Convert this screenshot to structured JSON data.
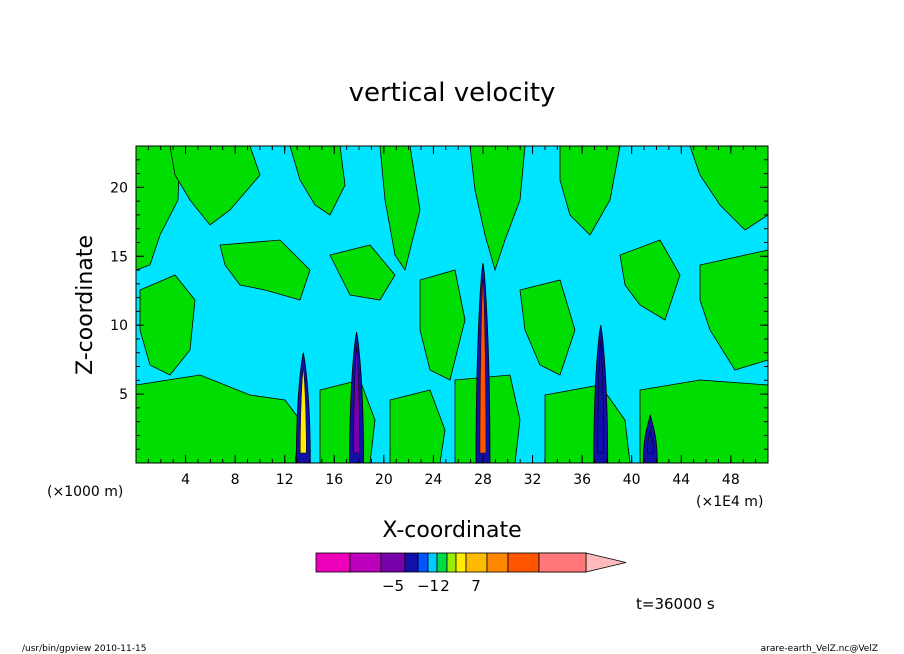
{
  "chart_data": {
    "type": "heatmap",
    "title": "vertical velocity",
    "xlabel": "X-coordinate",
    "ylabel": "Z-coordinate",
    "x_unit_left": "(×1000 m)",
    "x_unit_right": "(×1E4 m)",
    "xlim": [
      0,
      51
    ],
    "ylim": [
      0,
      23
    ],
    "x_ticks": [
      4,
      8,
      12,
      16,
      20,
      24,
      28,
      32,
      36,
      40,
      44,
      48
    ],
    "y_ticks": [
      5,
      10,
      15,
      20
    ],
    "background_fill": "#00e5ff",
    "positive_fill": "#00dd00",
    "colorbar": {
      "colors": [
        "#ee00bb",
        "#bb00bb",
        "#7700aa",
        "#1111aa",
        "#0055ff",
        "#00ccff",
        "#00dd44",
        "#99ee00",
        "#ffee00",
        "#ffbb00",
        "#ff8800",
        "#ff5500",
        "#ff1111",
        "#ff7777",
        "#ffbbbb"
      ],
      "labels": [
        {
          "text": "−5",
          "boundary": 2
        },
        {
          "text": "−1",
          "boundary": 4
        },
        {
          "text": "2",
          "boundary": 5
        },
        {
          "text": "7",
          "boundary": 8
        }
      ]
    },
    "updraft_columns": [
      {
        "x": 13.5,
        "top": 8.0,
        "color": "#ffee00"
      },
      {
        "x": 17.8,
        "top": 9.5,
        "color": "#7700aa"
      },
      {
        "x": 28.0,
        "top": 14.5,
        "color": "#ff5500"
      },
      {
        "x": 37.5,
        "top": 10.0,
        "color": "#1111aa"
      },
      {
        "x": 41.5,
        "top": 3.5,
        "color": "#1111aa"
      }
    ]
  },
  "annotations": {
    "time": "t=36000 s",
    "footer_left": "/usr/bin/gpview  2010-11-15",
    "footer_right": "arare-earth_VelZ.nc@VelZ"
  }
}
